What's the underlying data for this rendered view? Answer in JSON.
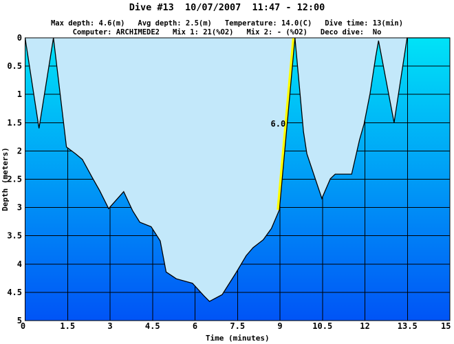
{
  "title": "Dive #13  10/07/2007  11:47 - 12:00",
  "stats": {
    "line1": "Max depth: 4.6(m)   Avg depth: 2.5(m)   Temperature: 14.0(C)   Dive time: 13(min)",
    "line2": "Computer: ARCHIMEDE2   Mix 1: 21(%O2)   Mix 2: - (%O2)   Deco dive:  No",
    "max_depth_m": 4.6,
    "avg_depth_m": 2.5,
    "temperature_c": 14.0,
    "dive_time_min": 13,
    "computer": "ARCHIMEDE2",
    "mix1": "21(%O2)",
    "mix2": "- (%O2)",
    "deco_dive": "No"
  },
  "chart_data": {
    "type": "area",
    "title": "Dive #13  10/07/2007  11:47 - 12:00",
    "xlabel": "Time (minutes)",
    "ylabel": "Depth (meters)",
    "xlim": [
      0,
      15
    ],
    "ylim": [
      0,
      5
    ],
    "y_axis_inverted_depth": true,
    "grid": "on",
    "x_ticks": [
      "0",
      "1.5",
      "3",
      "4.5",
      "6",
      "7.5",
      "9",
      "10.5",
      "12",
      "13.5",
      "15"
    ],
    "y_ticks": [
      "0",
      "0.5",
      "1",
      "1.5",
      "2",
      "2.5",
      "3",
      "3.5",
      "4",
      "4.5",
      "5"
    ],
    "series": [
      {
        "name": "depth-profile",
        "points": [
          [
            0,
            0
          ],
          [
            0.49,
            1.6
          ],
          [
            1.0,
            0
          ],
          [
            1.46,
            1.93
          ],
          [
            1.78,
            2.05
          ],
          [
            2.02,
            2.15
          ],
          [
            2.35,
            2.45
          ],
          [
            2.63,
            2.7
          ],
          [
            2.95,
            3.02
          ],
          [
            3.48,
            2.72
          ],
          [
            3.8,
            3.06
          ],
          [
            4.05,
            3.26
          ],
          [
            4.45,
            3.34
          ],
          [
            4.77,
            3.59
          ],
          [
            4.98,
            4.14
          ],
          [
            5.34,
            4.26
          ],
          [
            5.91,
            4.34
          ],
          [
            6.31,
            4.56
          ],
          [
            6.51,
            4.66
          ],
          [
            6.96,
            4.54
          ],
          [
            7.44,
            4.16
          ],
          [
            7.81,
            3.85
          ],
          [
            8.05,
            3.71
          ],
          [
            8.41,
            3.57
          ],
          [
            8.7,
            3.37
          ],
          [
            8.98,
            3.04
          ],
          [
            9.53,
            0
          ],
          [
            9.83,
            1.66
          ],
          [
            9.95,
            2.05
          ],
          [
            10.48,
            2.84
          ],
          [
            10.78,
            2.49
          ],
          [
            10.95,
            2.41
          ],
          [
            11.53,
            2.41
          ],
          [
            11.81,
            1.8
          ],
          [
            11.97,
            1.52
          ],
          [
            12.18,
            0.99
          ],
          [
            12.38,
            0.34
          ],
          [
            12.48,
            0.05
          ],
          [
            13.03,
            1.5
          ],
          [
            13.49,
            0
          ],
          [
            15,
            0
          ]
        ]
      }
    ],
    "fast_ascent_segment": {
      "from": [
        8.98,
        3.04
      ],
      "to": [
        9.53,
        0
      ],
      "color": "#ffff00",
      "rate_label": "6.0"
    },
    "annotations": [
      {
        "text": "6.0",
        "time": 9.2,
        "depth": 1.52
      }
    ],
    "colors": {
      "above_profile_fill": "#c3e8fa",
      "water_gradient_top": "#00e3f7",
      "water_gradient_bottom": "#0054f6",
      "grid_line": "#000000",
      "profile_line": "#000000",
      "text": "#000000"
    }
  }
}
